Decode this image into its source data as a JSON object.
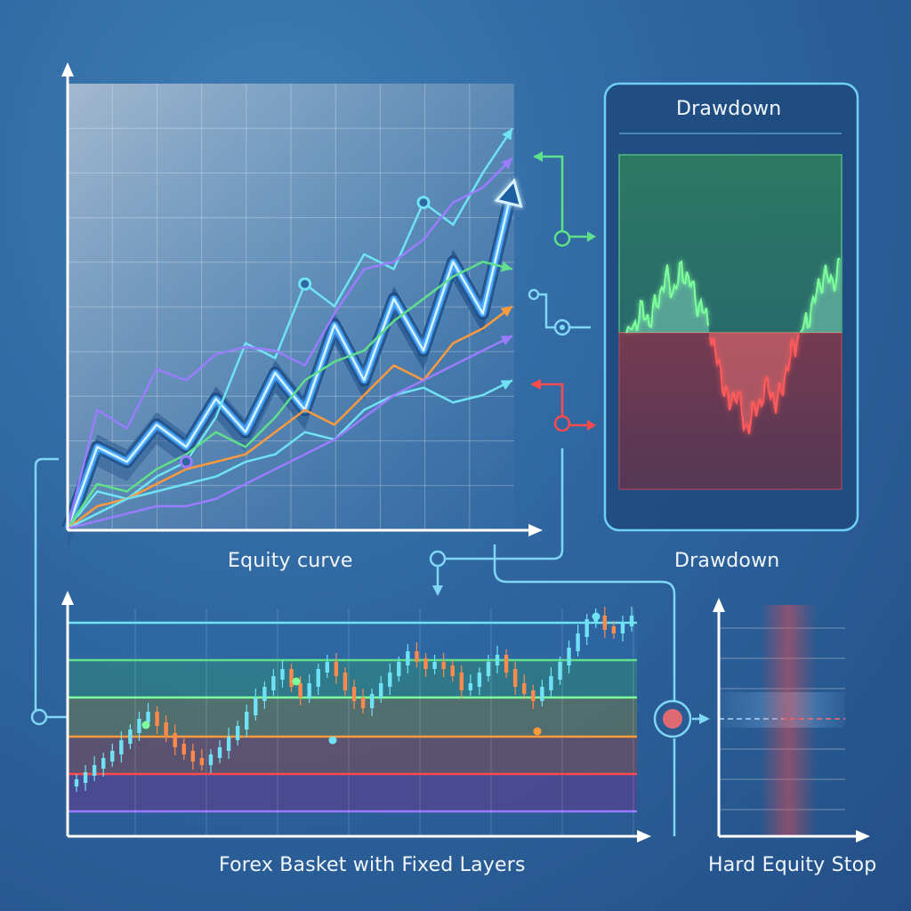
{
  "labels": {
    "equity_curve": "Equity curve",
    "drawdown_panel_title": "Drawdown",
    "drawdown_caption": "Drawdown",
    "forex_basket": "Forex Basket with Fixed Layers",
    "hard_equity_stop": "Hard Equity Stop"
  },
  "colors": {
    "background": "#2f66a0",
    "cyan": "#6fe3f5",
    "blue_main": "#4aa8ff",
    "green": "#5fe08a",
    "orange": "#ff9a3c",
    "purple": "#9a7cff",
    "red": "#ff4b4b",
    "connector": "#7fd6f7"
  },
  "icons": [
    "arrow-head-icon",
    "node-circle-icon",
    "stop-button-icon"
  ],
  "equity_chart": {
    "series": [
      {
        "color": "#4aa8ff",
        "values": [
          0,
          22,
          18,
          28,
          22,
          35,
          26,
          42,
          32,
          55,
          40,
          62,
          48,
          72,
          58,
          92
        ]
      },
      {
        "color": "#6fe3f5",
        "values": [
          0,
          10,
          8,
          14,
          18,
          30,
          50,
          46,
          66,
          60,
          74,
          70,
          88,
          82,
          96,
          108
        ]
      },
      {
        "color": "#9a7cff",
        "values": [
          0,
          32,
          27,
          43,
          40,
          47,
          49,
          48,
          44,
          58,
          70,
          72,
          78,
          88,
          92,
          100
        ]
      },
      {
        "color": "#5fe08a",
        "values": [
          0,
          12,
          10,
          16,
          20,
          26,
          22,
          30,
          40,
          45,
          48,
          56,
          62,
          68,
          72,
          70
        ]
      },
      {
        "color": "#ff9a3c",
        "values": [
          0,
          6,
          8,
          12,
          16,
          18,
          20,
          26,
          32,
          28,
          36,
          44,
          40,
          50,
          54,
          60
        ]
      },
      {
        "color": "#6fe3f5",
        "values": [
          0,
          4,
          8,
          10,
          12,
          14,
          18,
          20,
          26,
          24,
          32,
          36,
          38,
          34,
          36,
          40
        ]
      },
      {
        "color": "#9a7cff",
        "values": [
          0,
          2,
          4,
          6,
          6,
          8,
          12,
          16,
          20,
          24,
          30,
          36,
          40,
          44,
          48,
          52
        ]
      }
    ]
  },
  "drawdown_chart": {
    "values": [
      0,
      4,
      12,
      6,
      18,
      30,
      22,
      34,
      28,
      16,
      10,
      -8,
      -22,
      -40,
      -30,
      -52,
      -44,
      -36,
      -28,
      -40,
      -24,
      -10,
      0,
      8,
      20,
      32,
      26,
      36
    ]
  },
  "basket_chart": {
    "prices": [
      20,
      24,
      28,
      32,
      36,
      42,
      48,
      54,
      58,
      52,
      46,
      40,
      36,
      32,
      30,
      34,
      38,
      44,
      50,
      58,
      66,
      72,
      78,
      82,
      74,
      68,
      74,
      82,
      86,
      80,
      72,
      66,
      62,
      68,
      74,
      80,
      86,
      92,
      88,
      84,
      86,
      84,
      80,
      72,
      74,
      80,
      86,
      90,
      82,
      74,
      70,
      66,
      72,
      78,
      86,
      94,
      102,
      110,
      112,
      106,
      104,
      108,
      112
    ]
  }
}
